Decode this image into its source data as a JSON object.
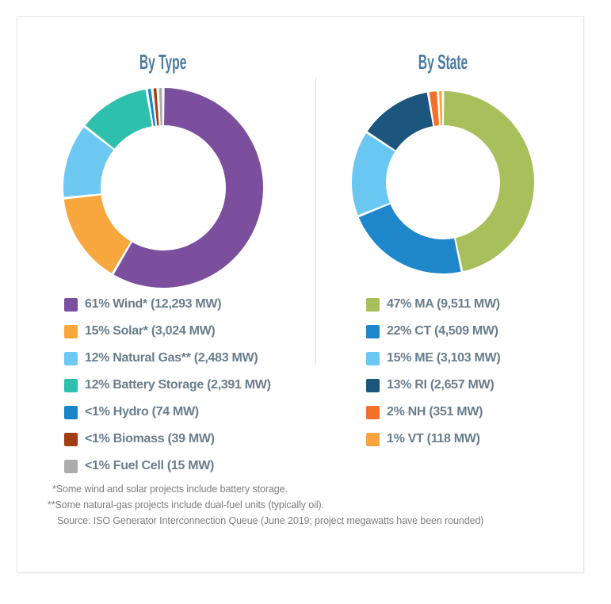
{
  "card": {
    "background": "#ffffff",
    "border_color": "#e6e6e6"
  },
  "chart_data": [
    {
      "type": "pie",
      "subtype": "donut",
      "title": "By Type",
      "unit": "MW",
      "legend_position": "bottom-left",
      "start_angle_deg": 0,
      "direction": "clockwise",
      "slices": [
        {
          "name": "Wind*",
          "pct_label": "61%",
          "mw": 12293,
          "legend": "61% Wind* (12,293 MW)",
          "color": "#7B4F9E"
        },
        {
          "name": "Solar*",
          "pct_label": "15%",
          "mw": 3024,
          "legend": "15% Solar* (3,024 MW)",
          "color": "#F7A73E"
        },
        {
          "name": "Natural Gas**",
          "pct_label": "12%",
          "mw": 2483,
          "legend": "12% Natural Gas** (2,483 MW)",
          "color": "#6EC9F2"
        },
        {
          "name": "Battery Storage",
          "pct_label": "12%",
          "mw": 2391,
          "legend": "12% Battery Storage (2,391 MW)",
          "color": "#2FBFAD"
        },
        {
          "name": "Hydro",
          "pct_label": "<1%",
          "mw": 74,
          "legend": "<1% Hydro (74 MW)",
          "color": "#1985C8"
        },
        {
          "name": "Biomass",
          "pct_label": "<1%",
          "mw": 39,
          "legend": "<1% Biomass (39 MW)",
          "color": "#A23D14"
        },
        {
          "name": "Fuel Cell",
          "pct_label": "<1%",
          "mw": 15,
          "legend": "<1% Fuel Cell (15 MW)",
          "color": "#ACACAC"
        }
      ]
    },
    {
      "type": "pie",
      "subtype": "donut",
      "title": "By State",
      "unit": "MW",
      "legend_position": "bottom-left",
      "start_angle_deg": 0,
      "direction": "clockwise",
      "slices": [
        {
          "name": "MA",
          "pct_label": "47%",
          "mw": 9511,
          "legend": "47% MA (9,511 MW)",
          "color": "#A7C05B"
        },
        {
          "name": "CT",
          "pct_label": "22%",
          "mw": 4509,
          "legend": "22% CT (4,509 MW)",
          "color": "#1E87C9"
        },
        {
          "name": "ME",
          "pct_label": "15%",
          "mw": 3103,
          "legend": "15% ME (3,103 MW)",
          "color": "#69C7F1"
        },
        {
          "name": "RI",
          "pct_label": "13%",
          "mw": 2657,
          "legend": "13% RI (2,657 MW)",
          "color": "#1C567E"
        },
        {
          "name": "NH",
          "pct_label": "2%",
          "mw": 351,
          "legend": "2% NH (351 MW)",
          "color": "#F3702A"
        },
        {
          "name": "VT",
          "pct_label": "1%",
          "mw": 118,
          "legend": "1% VT (118 MW)",
          "color": "#F8A43F"
        }
      ]
    }
  ],
  "footnotes": [
    "*Some wind and solar projects include battery storage.",
    "**Some natural-gas projects include dual-fuel units (typically oil).",
    "Source: ISO Generator Interconnection Queue (June 2019; project megawatts have been rounded)"
  ],
  "styles": {
    "title_color": "#4A7AA2",
    "legend_text_color": "#697D8A",
    "footnote_color": "#7E7E7E",
    "divider_color": "#E1E1E1",
    "border_color": "#E6E6E6"
  }
}
